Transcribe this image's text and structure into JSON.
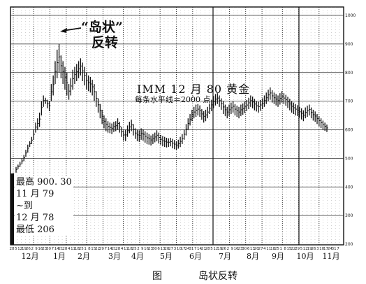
{
  "annotation": {
    "quote_line1": "“岛状”",
    "quote_line2": "反转"
  },
  "contract_label": "IMM  12 月 80 黄金",
  "gridline_note": "每条水平线＝2000 点",
  "stats": {
    "line1": "最高 900. 30",
    "line2": "11 月 79",
    "line3": "~到",
    "line4": "12 月 78",
    "line5": "最低 206"
  },
  "caption": {
    "figure_label": "图",
    "figure_title": "岛状反转"
  },
  "chart_data": {
    "type": "bar",
    "subtype": "daily high-low price bars (OHLC)",
    "title": "IMM 12 月 80 黄金",
    "subtitle": "每条水平线＝2000 点",
    "y_ticks": [
      200,
      300,
      400,
      500,
      600,
      700,
      800,
      900,
      1000
    ],
    "ylim": [
      200,
      1010
    ],
    "x_month_labels": [
      "12月",
      "1月",
      "2月",
      "3月",
      "4月",
      "5月",
      "6月",
      "7月",
      "8月",
      "9月",
      "10月",
      "11月"
    ],
    "x_day_labels": [
      "28",
      "5",
      "12",
      "19",
      "26",
      "2",
      "9",
      "16",
      "23",
      "30",
      "7",
      "14",
      "21",
      "28",
      "4",
      "11",
      "18",
      "25",
      "1",
      "8",
      "15",
      "22",
      "29",
      "7",
      "14",
      "21",
      "28",
      "4",
      "11",
      "18",
      "25",
      "2",
      "9",
      "16",
      "23",
      "30",
      "6",
      "13",
      "20",
      "27",
      "3",
      "10",
      "17",
      "24",
      "31",
      "7",
      "14",
      "21",
      "28",
      "5",
      "12",
      "19",
      "26",
      "2",
      "9",
      "16",
      "23",
      "30",
      "6",
      "13",
      "20",
      "27",
      "4",
      "11",
      "18",
      "25",
      "1",
      "8",
      "15",
      "22",
      "29",
      "5",
      "12",
      "19",
      "26",
      "3",
      "10",
      "17",
      "24",
      "31",
      "7"
    ],
    "grid": true,
    "highs_lows_annotation": {
      "high": 900.3,
      "low": 206
    },
    "series": [
      {
        "values": [
          [
            450,
            470
          ],
          [
            462,
            478
          ],
          [
            470,
            488
          ],
          [
            480,
            500
          ],
          [
            490,
            512
          ],
          [
            505,
            530
          ],
          [
            520,
            548
          ],
          [
            540,
            560
          ],
          [
            550,
            575
          ],
          [
            565,
            600
          ],
          [
            590,
            625
          ],
          [
            600,
            640
          ],
          [
            610,
            660
          ],
          [
            650,
            700
          ],
          [
            680,
            720
          ],
          [
            690,
            712
          ],
          [
            675,
            705
          ],
          [
            665,
            700
          ],
          [
            700,
            760
          ],
          [
            720,
            790
          ],
          [
            760,
            840
          ],
          [
            780,
            880
          ],
          [
            800,
            900
          ],
          [
            780,
            860
          ],
          [
            760,
            840
          ],
          [
            740,
            820
          ],
          [
            720,
            800
          ],
          [
            705,
            760
          ],
          [
            720,
            780
          ],
          [
            740,
            810
          ],
          [
            760,
            820
          ],
          [
            770,
            830
          ],
          [
            780,
            840
          ],
          [
            790,
            850
          ],
          [
            770,
            835
          ],
          [
            755,
            820
          ],
          [
            740,
            800
          ],
          [
            735,
            790
          ],
          [
            730,
            785
          ],
          [
            720,
            775
          ],
          [
            700,
            760
          ],
          [
            680,
            735
          ],
          [
            660,
            710
          ],
          [
            640,
            690
          ],
          [
            620,
            670
          ],
          [
            605,
            650
          ],
          [
            595,
            640
          ],
          [
            590,
            630
          ],
          [
            588,
            625
          ],
          [
            585,
            622
          ],
          [
            592,
            628
          ],
          [
            595,
            630
          ],
          [
            600,
            640
          ],
          [
            590,
            628
          ],
          [
            575,
            610
          ],
          [
            562,
            598
          ],
          [
            560,
            600
          ],
          [
            575,
            615
          ],
          [
            588,
            628
          ],
          [
            595,
            635
          ],
          [
            580,
            620
          ],
          [
            568,
            605
          ],
          [
            560,
            600
          ],
          [
            558,
            598
          ],
          [
            565,
            605
          ],
          [
            562,
            602
          ],
          [
            555,
            595
          ],
          [
            550,
            590
          ],
          [
            548,
            585
          ],
          [
            545,
            580
          ],
          [
            550,
            585
          ],
          [
            556,
            590
          ],
          [
            560,
            598
          ],
          [
            552,
            590
          ],
          [
            548,
            582
          ],
          [
            542,
            578
          ],
          [
            540,
            575
          ],
          [
            538,
            572
          ],
          [
            540,
            570
          ],
          [
            542,
            572
          ]
        ]
      },
      {
        "values": [
          [
            535,
            568
          ],
          [
            532,
            564
          ],
          [
            530,
            560
          ],
          [
            534,
            565
          ],
          [
            540,
            575
          ],
          [
            550,
            585
          ],
          [
            565,
            600
          ],
          [
            580,
            620
          ],
          [
            600,
            640
          ],
          [
            615,
            655
          ],
          [
            630,
            670
          ],
          [
            640,
            680
          ],
          [
            645,
            688
          ],
          [
            650,
            690
          ],
          [
            645,
            685
          ],
          [
            635,
            672
          ],
          [
            625,
            665
          ],
          [
            630,
            670
          ],
          [
            640,
            680
          ],
          [
            655,
            692
          ],
          [
            665,
            705
          ],
          [
            675,
            718
          ],
          [
            685,
            725
          ],
          [
            690,
            728
          ],
          [
            680,
            720
          ],
          [
            670,
            710
          ],
          [
            655,
            700
          ],
          [
            648,
            688
          ],
          [
            640,
            680
          ],
          [
            648,
            688
          ],
          [
            655,
            695
          ],
          [
            660,
            700
          ],
          [
            650,
            690
          ],
          [
            645,
            684
          ],
          [
            640,
            680
          ],
          [
            648,
            688
          ],
          [
            652,
            692
          ],
          [
            658,
            698
          ],
          [
            665,
            704
          ],
          [
            672,
            712
          ],
          [
            680,
            720
          ],
          [
            675,
            716
          ],
          [
            668,
            708
          ],
          [
            664,
            700
          ],
          [
            660,
            698
          ],
          [
            666,
            704
          ],
          [
            672,
            710
          ],
          [
            680,
            720
          ],
          [
            690,
            730
          ],
          [
            700,
            740
          ],
          [
            705,
            748
          ],
          [
            695,
            738
          ],
          [
            690,
            730
          ],
          [
            685,
            725
          ],
          [
            680,
            720
          ],
          [
            688,
            728
          ],
          [
            695,
            735
          ],
          [
            690,
            728
          ],
          [
            684,
            722
          ],
          [
            676,
            715
          ],
          [
            668,
            708
          ],
          [
            660,
            700
          ],
          [
            655,
            695
          ],
          [
            650,
            690
          ],
          [
            648,
            686
          ],
          [
            642,
            680
          ],
          [
            636,
            675
          ],
          [
            630,
            668
          ],
          [
            640,
            678
          ],
          [
            645,
            684
          ],
          [
            650,
            688
          ],
          [
            640,
            678
          ],
          [
            632,
            670
          ],
          [
            628,
            664
          ],
          [
            620,
            655
          ],
          [
            612,
            648
          ],
          [
            606,
            640
          ],
          [
            600,
            632
          ],
          [
            596,
            625
          ],
          [
            592,
            618
          ]
        ]
      }
    ]
  }
}
